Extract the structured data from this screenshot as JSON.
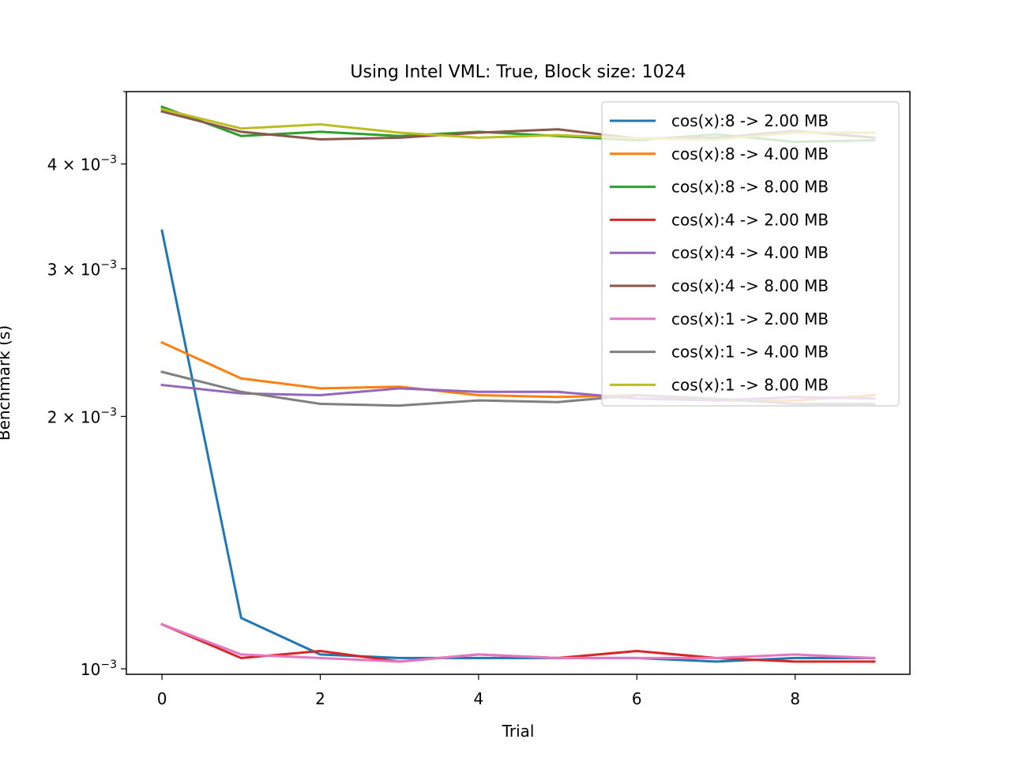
{
  "chart_data": {
    "type": "line",
    "title": "Using Intel VML: True, Block size: 1024",
    "xlabel": "Trial",
    "ylabel": "Benchmark (s)",
    "yscale": "log",
    "xlim": [
      -0.45,
      9.45
    ],
    "ylim": [
      0.000985,
      0.00488
    ],
    "x": [
      0,
      1,
      2,
      3,
      4,
      5,
      6,
      7,
      8,
      9
    ],
    "xticks": [
      {
        "value": 0,
        "label": "0"
      },
      {
        "value": 2,
        "label": "2"
      },
      {
        "value": 4,
        "label": "4"
      },
      {
        "value": 6,
        "label": "6"
      },
      {
        "value": 8,
        "label": "8"
      }
    ],
    "yticks": [
      {
        "value": 0.001,
        "base": "10",
        "exp": "−3",
        "mult": ""
      },
      {
        "value": 0.002,
        "base": "10",
        "exp": "−3",
        "mult": "2 × "
      },
      {
        "value": 0.003,
        "base": "10",
        "exp": "−3",
        "mult": "3 × "
      },
      {
        "value": 0.004,
        "base": "10",
        "exp": "−3",
        "mult": "4 × "
      }
    ],
    "grid": false,
    "legend_position": "top-right",
    "series": [
      {
        "name": "cos(x):8 -> 2.00 MB",
        "color": "#1f77b4",
        "values": [
          0.00333,
          0.00115,
          0.00104,
          0.00103,
          0.00103,
          0.00103,
          0.00103,
          0.00102,
          0.00103,
          0.00103
        ]
      },
      {
        "name": "cos(x):8 -> 4.00 MB",
        "color": "#ff7f0e",
        "values": [
          0.00245,
          0.00222,
          0.00216,
          0.00217,
          0.00212,
          0.00211,
          0.00212,
          0.00209,
          0.00209,
          0.00212
        ]
      },
      {
        "name": "cos(x):8 -> 8.00 MB",
        "color": "#2ca02c",
        "values": [
          0.00468,
          0.00432,
          0.00437,
          0.00432,
          0.00437,
          0.00432,
          0.00427,
          0.00434,
          0.00425,
          0.00427
        ]
      },
      {
        "name": "cos(x):4 -> 2.00 MB",
        "color": "#d62728",
        "values": [
          0.00113,
          0.00103,
          0.00105,
          0.00102,
          0.00104,
          0.00103,
          0.00105,
          0.00103,
          0.00102,
          0.00102
        ]
      },
      {
        "name": "cos(x):4 -> 4.00 MB",
        "color": "#9467bd",
        "values": [
          0.00218,
          0.00213,
          0.00212,
          0.00216,
          0.00214,
          0.00214,
          0.0021,
          0.00209,
          0.00211,
          0.0021
        ]
      },
      {
        "name": "cos(x):4 -> 8.00 MB",
        "color": "#8c564b",
        "values": [
          0.00462,
          0.00437,
          0.00428,
          0.0043,
          0.00436,
          0.0044,
          0.00429,
          0.0043,
          0.00438,
          0.0043
        ]
      },
      {
        "name": "cos(x):1 -> 2.00 MB",
        "color": "#e377c2",
        "values": [
          0.00113,
          0.00104,
          0.00103,
          0.00102,
          0.00104,
          0.00103,
          0.00103,
          0.00103,
          0.00104,
          0.00103
        ]
      },
      {
        "name": "cos(x):1 -> 4.00 MB",
        "color": "#7f7f7f",
        "values": [
          0.00226,
          0.00214,
          0.00207,
          0.00206,
          0.00209,
          0.00208,
          0.00212,
          0.0021,
          0.00207,
          0.00207
        ]
      },
      {
        "name": "cos(x):1 -> 8.00 MB",
        "color": "#bcbd22",
        "values": [
          0.00465,
          0.00441,
          0.00446,
          0.00436,
          0.0043,
          0.00433,
          0.00429,
          0.00428,
          0.00436,
          0.00436
        ]
      }
    ]
  }
}
